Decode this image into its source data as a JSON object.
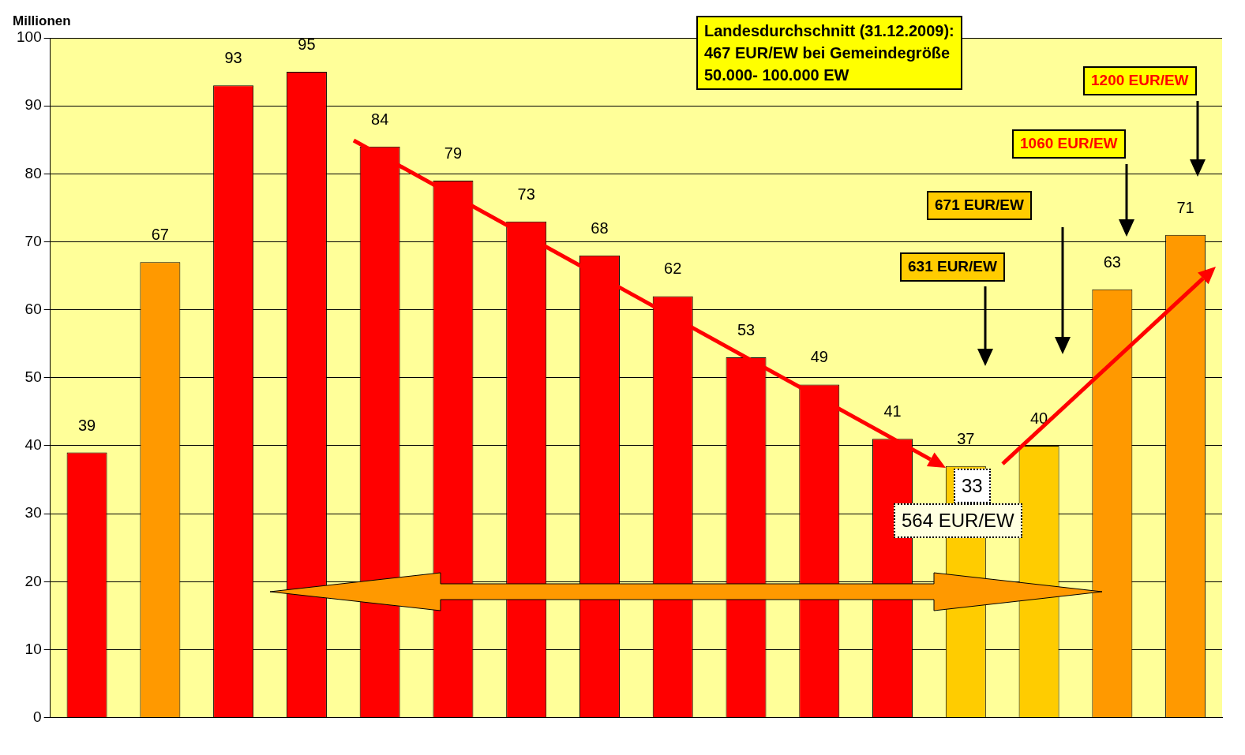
{
  "chart_data": {
    "type": "bar",
    "ylabel": "Millionen",
    "categories": [
      null,
      null,
      null,
      null,
      null,
      null,
      null,
      null,
      null,
      null,
      null,
      null,
      null,
      null,
      null,
      null
    ],
    "values": [
      39,
      67,
      93,
      95,
      84,
      79,
      73,
      68,
      62,
      53,
      49,
      41,
      37,
      40,
      63,
      71
    ],
    "colors": [
      "#ff0000",
      "#ff9900",
      "#ff0000",
      "#ff0000",
      "#ff0000",
      "#ff0000",
      "#ff0000",
      "#ff0000",
      "#ff0000",
      "#ff0000",
      "#ff0000",
      "#ff0000",
      "#ffcc00",
      "#ffcc00",
      "#ff9900",
      "#ff9900"
    ],
    "ylim": [
      0,
      100
    ],
    "yticks": [
      0,
      10,
      20,
      30,
      40,
      50,
      60,
      70,
      80,
      90,
      100
    ],
    "grid": "y",
    "data_labels": true,
    "annotations": [
      "Landesdurchschnitt (31.12.2009):\n467 EUR/EW bei Gemeindegröße\n50.000- 100.000 EW",
      "1200 EUR/EW",
      "1060 EUR/EW",
      "671 EUR/EW",
      "631 EUR/EW",
      "33",
      "564 EUR/EW"
    ]
  }
}
